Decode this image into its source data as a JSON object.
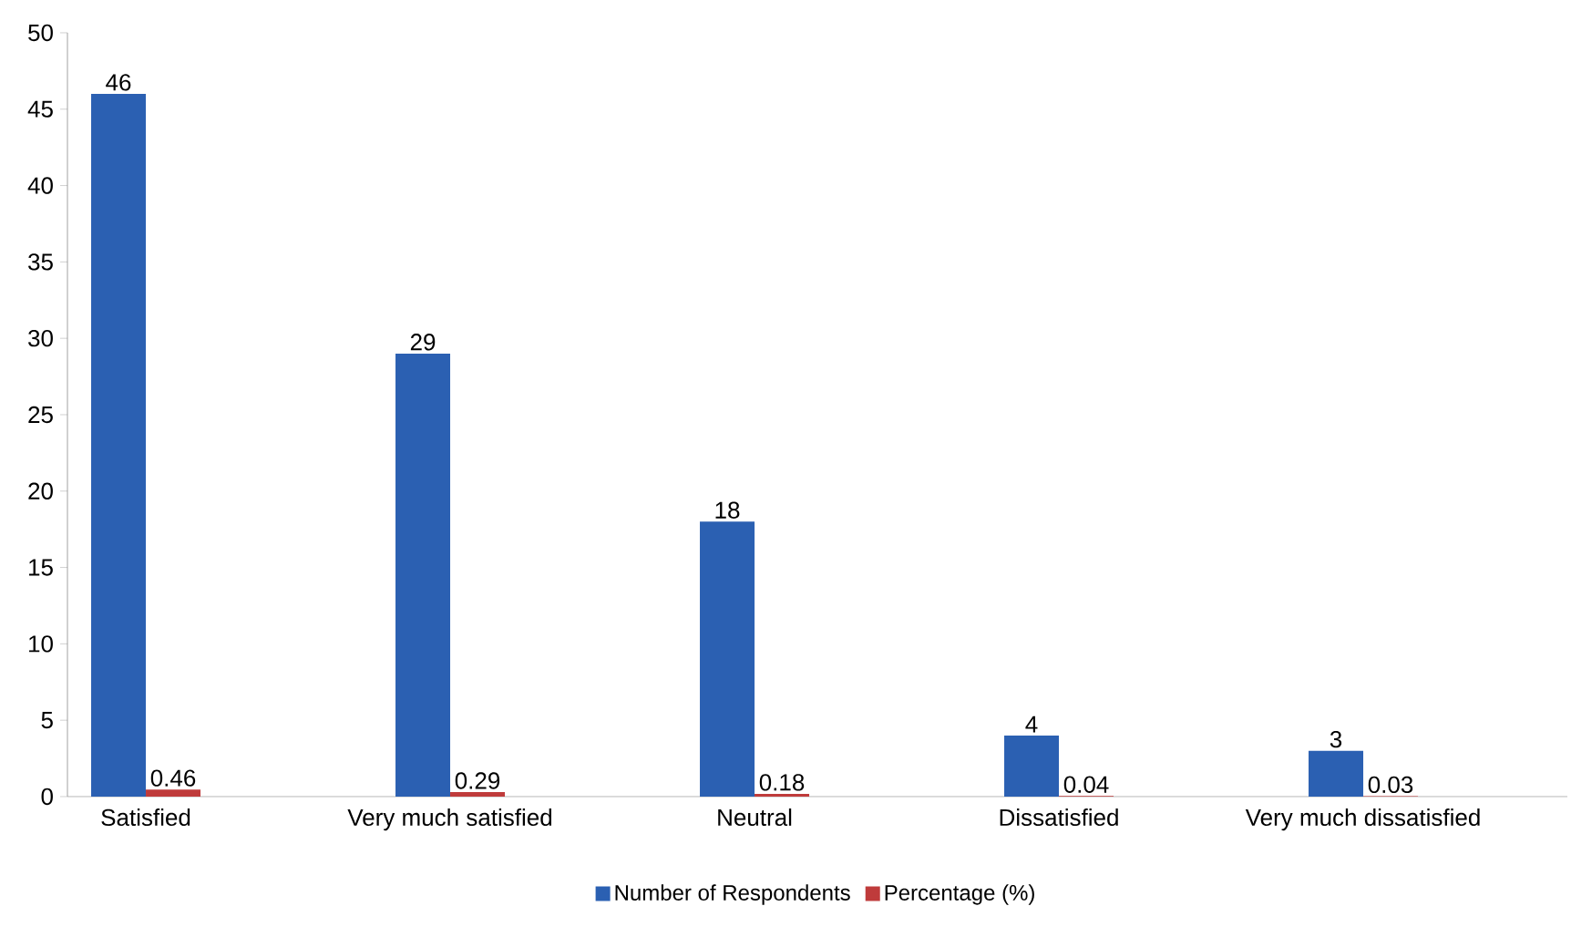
{
  "chart_data": {
    "type": "bar",
    "categories": [
      "Satisfied",
      "Very much satisfied",
      "Neutral",
      "Dissatisfied",
      "Very much dissatisfied"
    ],
    "series": [
      {
        "name": "Number of Respondents",
        "color": "#2b60b2",
        "values": [
          46,
          29,
          18,
          4,
          3
        ]
      },
      {
        "name": "Percentage (%)",
        "color": "#bf3b3b",
        "values": [
          0.46,
          0.29,
          0.18,
          0.04,
          0.03
        ]
      }
    ],
    "ylim": [
      0,
      50
    ],
    "yticks": [
      0,
      5,
      10,
      15,
      20,
      25,
      30,
      35,
      40,
      45,
      50
    ],
    "data_labels": true,
    "legend": "bottom"
  }
}
